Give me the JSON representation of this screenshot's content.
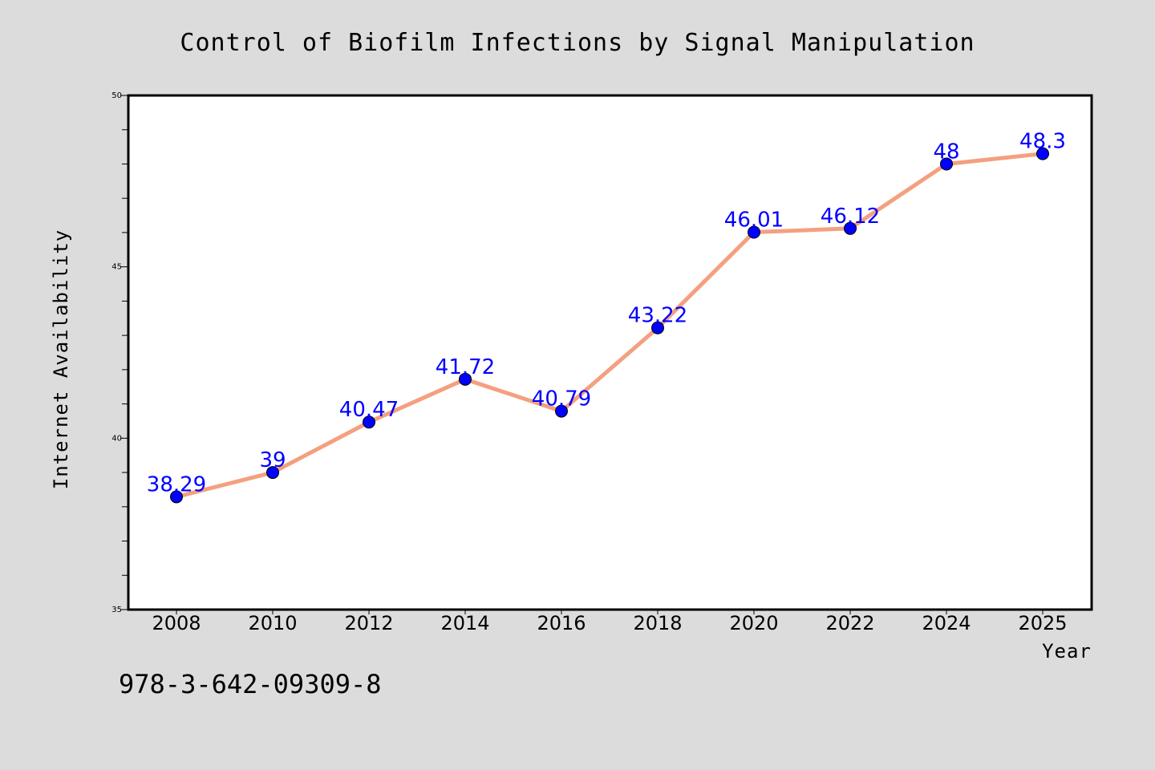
{
  "chart_data": {
    "type": "line",
    "title": "Control of Biofilm Infections by Signal Manipulation",
    "xlabel": "Year",
    "ylabel": "Internet Availability",
    "categories": [
      "2008",
      "2010",
      "2012",
      "2014",
      "2016",
      "2018",
      "2020",
      "2022",
      "2024",
      "2025"
    ],
    "values": [
      38.29,
      39,
      40.47,
      41.72,
      40.79,
      43.22,
      46.01,
      46.12,
      48,
      48.3
    ],
    "data_labels": [
      "38.29",
      "39",
      "40.47",
      "41.72",
      "40.79",
      "43.22",
      "46.01",
      "46.12",
      "48",
      "48.3"
    ],
    "ylim": [
      35,
      50
    ],
    "yticks": [
      "35",
      "40",
      "45",
      "50"
    ],
    "grid": false,
    "line_color": "#f4a07f",
    "marker_color": "#0000ff",
    "label_color": "#0000ff"
  },
  "footer": {
    "text": "978-3-642-09309-8"
  }
}
